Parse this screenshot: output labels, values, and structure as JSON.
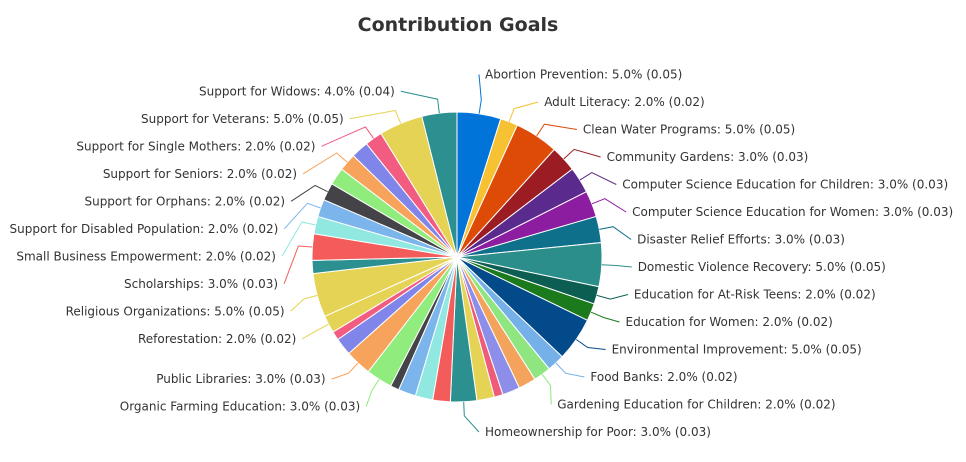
{
  "chart_data": {
    "type": "pie",
    "title": "Contribution Goals",
    "slices": [
      {
        "name": "Abortion Prevention",
        "percent": "5.0%",
        "value": 0.05,
        "color": "#0074d9"
      },
      {
        "name": "Adult Literacy",
        "percent": "2.0%",
        "value": 0.02,
        "color": "#f6c132"
      },
      {
        "name": "Clean Water Programs",
        "percent": "5.0%",
        "value": 0.05,
        "color": "#dd4b07"
      },
      {
        "name": "Community Gardens",
        "percent": "3.0%",
        "value": 0.03,
        "color": "#9c1c24"
      },
      {
        "name": "Computer Science Education for Children",
        "percent": "3.0%",
        "value": 0.03,
        "color": "#5a2a8c"
      },
      {
        "name": "Computer Science Education for Women",
        "percent": "3.0%",
        "value": 0.03,
        "color": "#8d1da0"
      },
      {
        "name": "Disaster Relief Efforts",
        "percent": "3.0%",
        "value": 0.03,
        "color": "#0f708c"
      },
      {
        "name": "Domestic Violence Recovery",
        "percent": "5.0%",
        "value": 0.05,
        "color": "#2c8e8a"
      },
      {
        "name": "Education for At-Risk Teens",
        "percent": "2.0%",
        "value": 0.02,
        "color": "#0c5e52"
      },
      {
        "name": "Education for Women",
        "percent": "2.0%",
        "value": 0.02,
        "color": "#1b7a1b"
      },
      {
        "name": "Environmental Improvement",
        "percent": "5.0%",
        "value": 0.05,
        "color": "#034a8b"
      },
      {
        "name": "Food Banks",
        "percent": "2.0%",
        "value": 0.02,
        "color": "#75b0e8"
      },
      {
        "name": "Gardening Education for Children",
        "percent": "2.0%",
        "value": 0.02,
        "color": "#8fe680"
      },
      {
        "name": "",
        "percent": "",
        "value": 0.02,
        "color": "#f4a35d"
      },
      {
        "name": "",
        "percent": "",
        "value": 0.02,
        "color": "#8c8ee9"
      },
      {
        "name": "",
        "percent": "",
        "value": 0.01,
        "color": "#ee5c79"
      },
      {
        "name": "",
        "percent": "",
        "value": 0.02,
        "color": "#e4d354"
      },
      {
        "name": "Homeownership for Poor",
        "percent": "3.0%",
        "value": 0.03,
        "color": "#2b908f"
      },
      {
        "name": "",
        "percent": "",
        "value": 0.02,
        "color": "#f45b5b"
      },
      {
        "name": "",
        "percent": "",
        "value": 0.02,
        "color": "#91e8e1"
      },
      {
        "name": "",
        "percent": "",
        "value": 0.02,
        "color": "#7cb5ec"
      },
      {
        "name": "",
        "percent": "",
        "value": 0.01,
        "color": "#434348"
      },
      {
        "name": "Organic Farming Education",
        "percent": "3.0%",
        "value": 0.03,
        "color": "#90ed7d"
      },
      {
        "name": "Public Libraries",
        "percent": "3.0%",
        "value": 0.03,
        "color": "#f7a35c"
      },
      {
        "name": "",
        "percent": "",
        "value": 0.02,
        "color": "#8085e9"
      },
      {
        "name": "",
        "percent": "",
        "value": 0.01,
        "color": "#f15c80"
      },
      {
        "name": "Reforestation",
        "percent": "2.0%",
        "value": 0.02,
        "color": "#e4d354"
      },
      {
        "name": "Religious Organizations",
        "percent": "5.0%",
        "value": 0.05,
        "color": "#e4d354"
      },
      {
        "name": "",
        "percent": "",
        "value": 0.015,
        "color": "#2b908f"
      },
      {
        "name": "Scholarships",
        "percent": "3.0%",
        "value": 0.03,
        "color": "#f45b5b"
      },
      {
        "name": "Small Business Empowerment",
        "percent": "2.0%",
        "value": 0.02,
        "color": "#91e8e1"
      },
      {
        "name": "Support for Disabled Population",
        "percent": "2.0%",
        "value": 0.02,
        "color": "#7cb5ec"
      },
      {
        "name": "Support for Orphans",
        "percent": "2.0%",
        "value": 0.02,
        "color": "#434348"
      },
      {
        "name": "",
        "percent": "",
        "value": 0.02,
        "color": "#90ed7d"
      },
      {
        "name": "Support for Seniors",
        "percent": "2.0%",
        "value": 0.02,
        "color": "#f7a35c"
      },
      {
        "name": "",
        "percent": "",
        "value": 0.02,
        "color": "#8085e9"
      },
      {
        "name": "Support for Single Mothers",
        "percent": "2.0%",
        "value": 0.02,
        "color": "#f15c80"
      },
      {
        "name": "Support for Veterans",
        "percent": "5.0%",
        "value": 0.05,
        "color": "#e4d354"
      },
      {
        "name": "Support for Widows",
        "percent": "4.0%",
        "value": 0.04,
        "color": "#2b908f"
      }
    ]
  }
}
